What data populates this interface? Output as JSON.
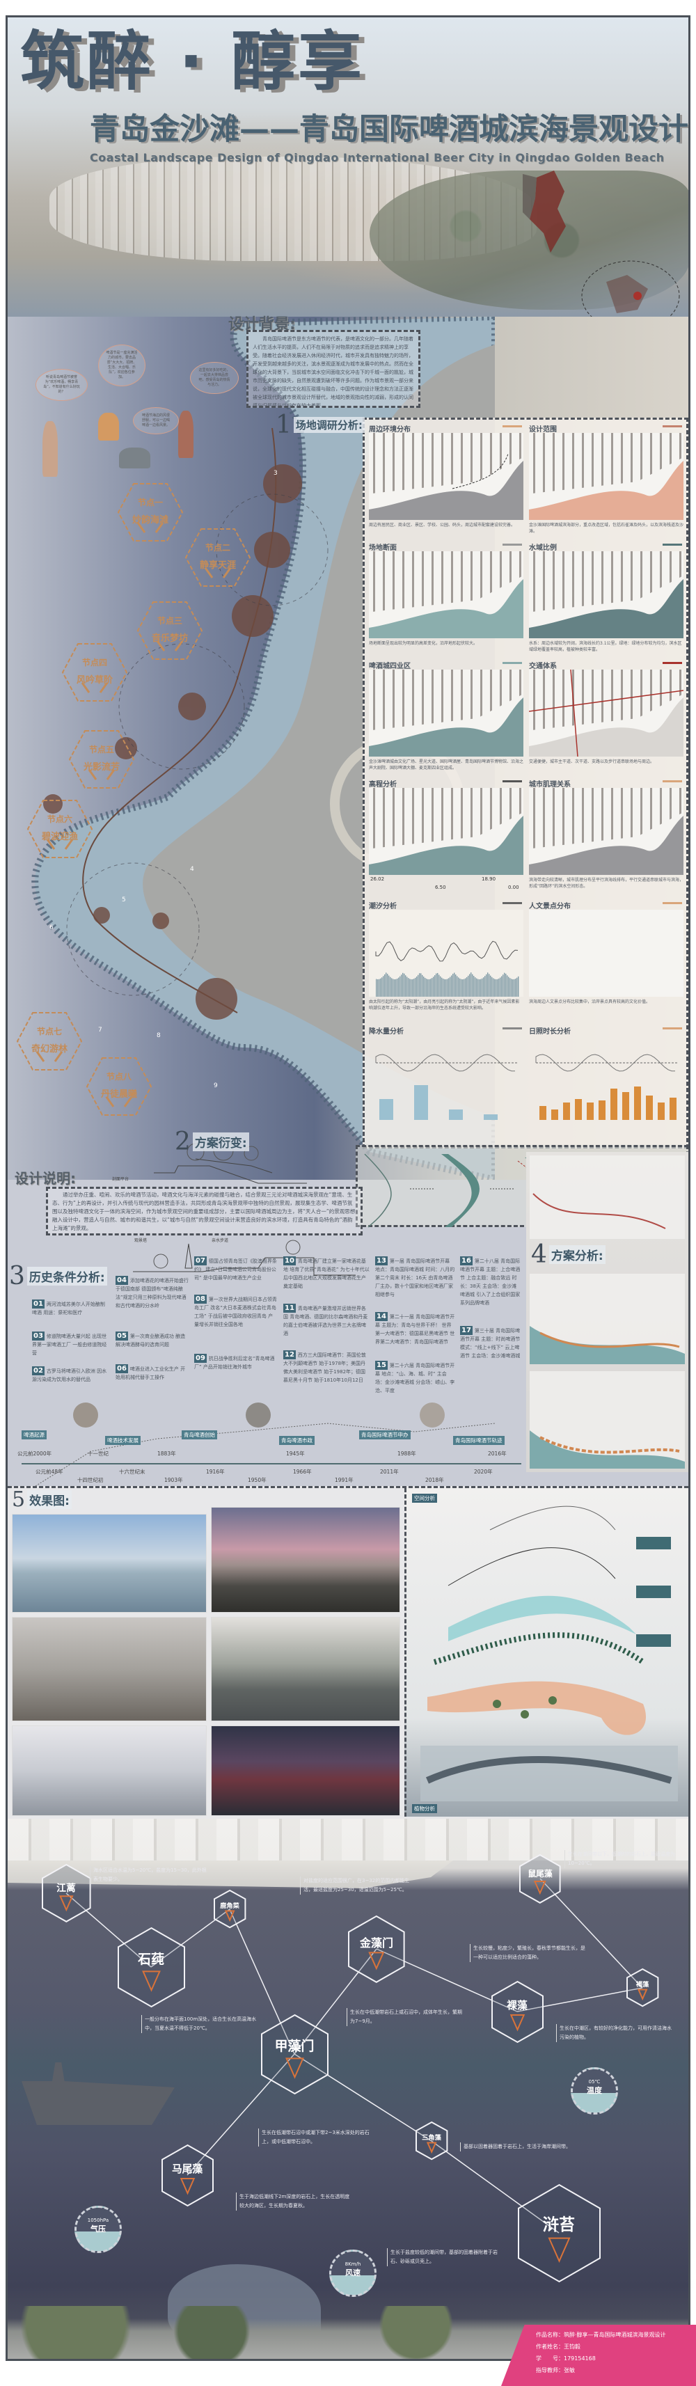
{
  "header": {
    "title": "筑醉 · 醇享",
    "subtitle": "青岛金沙滩——青岛国际啤酒城滨海景观设计",
    "subtitle_en": "Coastal Landscape Design of Qingdao International Beer City in Qingdao Golden Beach"
  },
  "background": {
    "heading": "设计背景:",
    "body": "青岛国际啤酒节是东方啤酒节的代表，是啤酒文化的一部分。几年随着人们生活水平的提高，人们不在局限于对物质的追求而是追求精神上的享受。随着社会经济发展进入休闲经济时代，城市开发具有独特魅力的场所，开发受到越来越多的关注，滨水景观逐渐成为城市发展中的热点。然而在全球化的大背景下，当前城市滨水空间面临文化冲击下的千城一面的尴尬，城市历史文脉的缺失，自然景观遭到破坏等许多问题。作为城市景观一部分来说，全球化的现代文化相互碰撞与融合，中国传统的设计理念和方法正逐渐被全球现代的城市景观设计所替代，地域的景观指向性的减弱，形成的认同感与归属感与以前存在较大差距。",
    "bubbles": [
      "听说青岛啤酒节被誉为“欢乐啤酒，畅享青岛”，不知道有什么好玩的？",
      "啤酒节是一座充满活力的城市，要去品尝“大大大、招牌、生活、大合唱、乐队”，欢迎各位参加。",
      "啤酒节海边的风很舒服，可以一边喝啤酒一边看风景。",
      "这里有好多好吃的，一起去大排档品尝吧，感受青岛的热情与活力。"
    ]
  },
  "site": {
    "section_num": "1",
    "section_label": "场地调研分析:",
    "nodes": [
      {
        "title": "节点一",
        "name": "妙韵海滩"
      },
      {
        "title": "节点二",
        "name": "静享天涯"
      },
      {
        "title": "节点三",
        "name": "音乐梦坊"
      },
      {
        "title": "节点四",
        "name": "风吟草阶"
      },
      {
        "title": "节点五",
        "name": "光影流芳"
      },
      {
        "title": "节点六",
        "name": "碧波迎渔"
      },
      {
        "title": "节点七",
        "name": "奇幻游林"
      },
      {
        "title": "节点八",
        "name": "丹徒晨曦"
      }
    ],
    "markers": [
      "3",
      "4",
      "5",
      "6",
      "7",
      "8",
      "9"
    ],
    "panels": [
      {
        "title": "周边环境分布",
        "caption": "周边有居民区、商业区、景区、学校、公园、码头，周边城市配套建设较完善。"
      },
      {
        "title": "设计范围",
        "caption": "金沙滩国际啤酒城滨海部分，重点改造区域，包括石雀滩及码头，以及滨海栈道及沙滩。"
      },
      {
        "title": "场地断面",
        "caption": "场地断面呈现出较为明显的高差变化，沿岸地形起伏较大。"
      },
      {
        "title": "水域比例",
        "caption": "水系：周边水域较为开阔，滨海线长约3.1公里。绿地：绿地分布较为均匀，滨水区域绿地覆盖率较高，植被种类较丰富。"
      },
      {
        "title": "啤酒城四业区",
        "caption": "金沙滩啤酒城由文化广场、星光大道、国际啤酒屋、青岛国际啤酒节博物馆、沿海之声大剧院、国际啤酒大棚、麦克斯四业区组成。"
      },
      {
        "title": "交通体系",
        "caption": "交通便捷，城市主干道、次干道、支路以及步行道串联场地与周边。"
      },
      {
        "title": "高程分析",
        "caption": "",
        "elevations": [
          "26.02",
          "18.90",
          "6.50",
          "0.00"
        ]
      },
      {
        "title": "城市肌理关系",
        "caption": "滨海带走向较清晰，城市肌理分布呈平行滨海线排布，平行交通道串联城市与滨海，形成“回路环”的滨水空间形态。"
      },
      {
        "title": "潮汐分析",
        "caption": "由太阳引起的称为“太阳潮”，由月亮引起的称为“太阴潮”，由于近年来气候因素影响潮位逐年上升，导致一部分沿海岸的生态系统遭受较大影响。"
      },
      {
        "title": "人文景点分布",
        "caption": "滨海周边人文景点分布比较集中，沿岸景点具有较高的文化价值。"
      },
      {
        "title": "降水量分析",
        "caption": ""
      },
      {
        "title": "日照时长分析",
        "caption": ""
      }
    ]
  },
  "evolution": {
    "section_num": "2",
    "section_label": "方案衍变:"
  },
  "description": {
    "heading": "设计说明:",
    "body": "通过举办庄重、喧闹、欢乐的啤酒节活动，啤酒文化与海洋元素的碰撞与融合，结合景观三元论对啤酒城滨海景观在“意境、生态、行为”上的再设计，并引入传统与现代的园林营造手法，共同形成青岛滨海景观带中独特的自然景观，展现集生态学、啤酒节氛围以及独特啤酒文化于一体的滨海空间，作为城市景观空间的重要组成部分，主要以国际啤酒城周边为主，将“天人合一”的景观思想融入设计中，营造人与自然、城市的和谐共生，以“城市与自然”的景观空间设计来营造良好的滨水环境，打造具有青岛特色的“酒韵上海滩”的景观。",
    "section_labels": [
      "剖面平台",
      "观景塔",
      "亲水步道"
    ]
  },
  "history": {
    "section_num": "3",
    "section_label": "历史条件分析:",
    "events": [
      {
        "num": "01",
        "text": "两河流域苏美尔人开始酿制啤酒 用途：祭祀和医疗"
      },
      {
        "num": "02",
        "text": "古罗马将啤酒引入欧洲 因水源污染成为饮用水的替代品"
      },
      {
        "num": "03",
        "text": "修道院啤酒大量兴起 出现世界第一家啤酒工厂 一般由修道院经营"
      },
      {
        "num": "04",
        "text": "添加啤酒花的啤酒开始盛行于德国南部 德国颁布“啤酒纯酿法”规定只用三种原料为现代啤酒和古代啤酒的分水岭"
      },
      {
        "num": "05",
        "text": "第一次商业酿酒成功 酿造解决啤酒酵母的选育问题"
      },
      {
        "num": "06",
        "text": "啤酒业进入工业化生产 开始用机械代替手工操作"
      },
      {
        "num": "07",
        "text": "德国占领青岛签订《胶澳租界条约》 建立“日耳曼啤酒公司青岛股份公司” 是中国最早的啤酒生产企业"
      },
      {
        "num": "08",
        "text": "第一次世界大战期间日本占领青岛工厂 改名“大日本麦酒株式会社青岛工场” 于战后被中国政府收回青岛 产量增长并销往全国各地"
      },
      {
        "num": "09",
        "text": "抗日战争胜利后定名“青岛啤酒厂” 产品开始销往海外城市"
      },
      {
        "num": "10",
        "text": "青岛啤酒厂建立第一家啤酒花基地 培育了优质“青岛酒花” 为七十年代以后中国西北地区大规模发展啤酒花生产奠定基础"
      },
      {
        "num": "11",
        "text": "青岛啤酒产量激增并远销世界各国 青岛啤酒、德国的比尔森啤酒和丹麦的嘉士伯啤酒被评选为世界三大名牌啤酒"
      },
      {
        "num": "12",
        "text": "西方三大国际啤酒节：英国伦敦大不列颠啤酒节 始于1978年；美国丹佛大美利坚啤酒节 始于1982年；德国慕尼黑十月节 始于1810年10月12日"
      },
      {
        "num": "13",
        "text": "第一届 青岛国际啤酒节开幕 地点：青岛国际啤酒城 时间：八月的第二个周末 时长：16天 由青岛啤酒厂主办，数十个国家和地区啤酒厂家相继参与"
      },
      {
        "num": "14",
        "text": "第二十一届 青岛国际啤酒节开幕 主题为：青岛与世界干杯！ 世界第一大啤酒节：德国慕尼黑啤酒节 世界第二大啤酒节：青岛国际啤酒节"
      },
      {
        "num": "15",
        "text": "第二十六届 青岛国际啤酒节开幕 地点：“山、海、城、时” 主会场：金沙滩啤酒城 分会场：崂山、李沧、平度"
      },
      {
        "num": "16",
        "text": "第二十八届 青岛国际啤酒节开幕 主题：上合啤酒节 上合主题：融合致远 时长：38天 主会场：金沙滩啤酒城 引入了上合组织国家系列品牌啤酒"
      },
      {
        "num": "17",
        "text": "第三十届 青岛国际啤酒节开幕 主题：时尚啤酒节 模式：“线上+线下” 云上啤酒节 主会场：金沙滩啤酒城"
      }
    ],
    "tags": [
      "啤酒起源",
      "啤酒技术发展",
      "青岛啤酒创始",
      "青岛啤酒市政",
      "青岛国际啤酒节申办",
      "青岛国际啤酒节轨迹"
    ],
    "years_top": [
      "公元前2000年",
      "十一世纪",
      "1883年",
      "1945年",
      "1988年",
      "2016年"
    ],
    "years_bottom": [
      "公元前48年",
      "十四世纪初",
      "十六世纪末",
      "1903年",
      "1916年",
      "1950年",
      "1966年",
      "1991年",
      "2011年",
      "2018年",
      "2020年"
    ]
  },
  "scheme": {
    "section_num": "4",
    "section_label": "方案分析:"
  },
  "renderings": {
    "section_num": "5",
    "section_label": "效果图:",
    "space_label": "空间分析",
    "plant_label": "植物分析"
  },
  "ecology": {
    "hexes": [
      "江蓠",
      "石莼",
      "鹿角菜",
      "金藻门",
      "鼠尾藻",
      "褐藻",
      "裸藻",
      "甲藻门",
      "马尾藻",
      "三角藻",
      "浒苔"
    ],
    "descriptions": [
      "海水区适合水温为5~20℃，盐度为15~30，此外根表生物要少。",
      "对盐度的适应范围很广，在3~32的范围内都能生活，最适盐度为25~30，适温范围为5~25℃。",
      "一般分布在海平面100m深处，适合生长在高温海水中，当夏水温不得低于20℃。",
      "生长在中低潮带岩石上或石沼中，成体年生长，繁期为7~9月。",
      "生长在潮间带以下，低潮时的岩石上，最适温度为10~20℃。",
      "生长较慢，粘度少，繁殖长，春秋季节都能生长，是一种可以适应比例适合的藻种。",
      "生长在中潮区，有较好的净化能力，可用作清洁海水污染的植物。",
      "生长在低潮带石沼中或潮下带2~3米水深处的岩石上，或中低潮带石沼中。",
      "生于海边低潮线下2m深度的岩石上，生长在透明度较大的海区，生长期为春夏秋。",
      "基部以固着器固着于岩石上，生活于海岸潮间带。",
      "生长于盐度较低的潮间带，基部的固着器附着于岩石、砂砾或贝壳上。"
    ],
    "gauges": [
      {
        "value": "1050hPa",
        "name": "气压"
      },
      {
        "value": "8Km/h",
        "name": "风速"
      },
      {
        "value": "05℃",
        "name": "温度"
      }
    ]
  },
  "credits": {
    "work": "作品名称：筑醉·醇享—青岛国际啤酒城滨海景观设计",
    "author": "作者姓名：王钧毅",
    "student_id": "学　　号：179154168",
    "advisor": "指导教师：张敏"
  },
  "colors": {
    "accent_orange": "#c48c58",
    "title": "#46586a",
    "badge": "#3f6676",
    "credits_bg": "#e0417f",
    "route_red": "#a8322c"
  }
}
